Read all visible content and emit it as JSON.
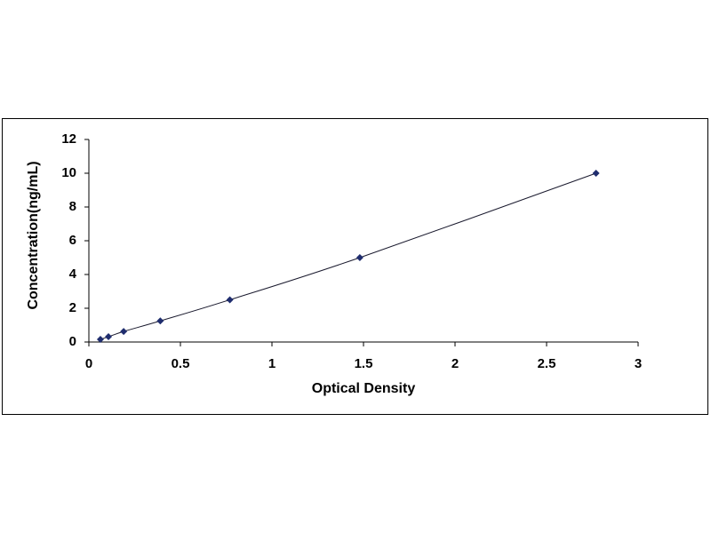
{
  "chart_data": {
    "type": "scatter",
    "xlabel": "Optical Density",
    "ylabel": "Concentration(ng/mL)",
    "x": [
      0.063,
      0.107,
      0.19,
      0.39,
      0.77,
      1.48,
      2.77
    ],
    "values": [
      0.156,
      0.313,
      0.625,
      1.25,
      2.5,
      5,
      10
    ],
    "color": "#1f2d6e",
    "line_color": "#1a1a2e",
    "connect": true,
    "xlim": [
      0,
      3
    ],
    "xticks": [
      0,
      0.5,
      1,
      1.5,
      2,
      2.5,
      3
    ],
    "ylim": [
      0,
      12
    ],
    "yticks": [
      0,
      2,
      4,
      6,
      8,
      10,
      12
    ],
    "grid": false
  }
}
